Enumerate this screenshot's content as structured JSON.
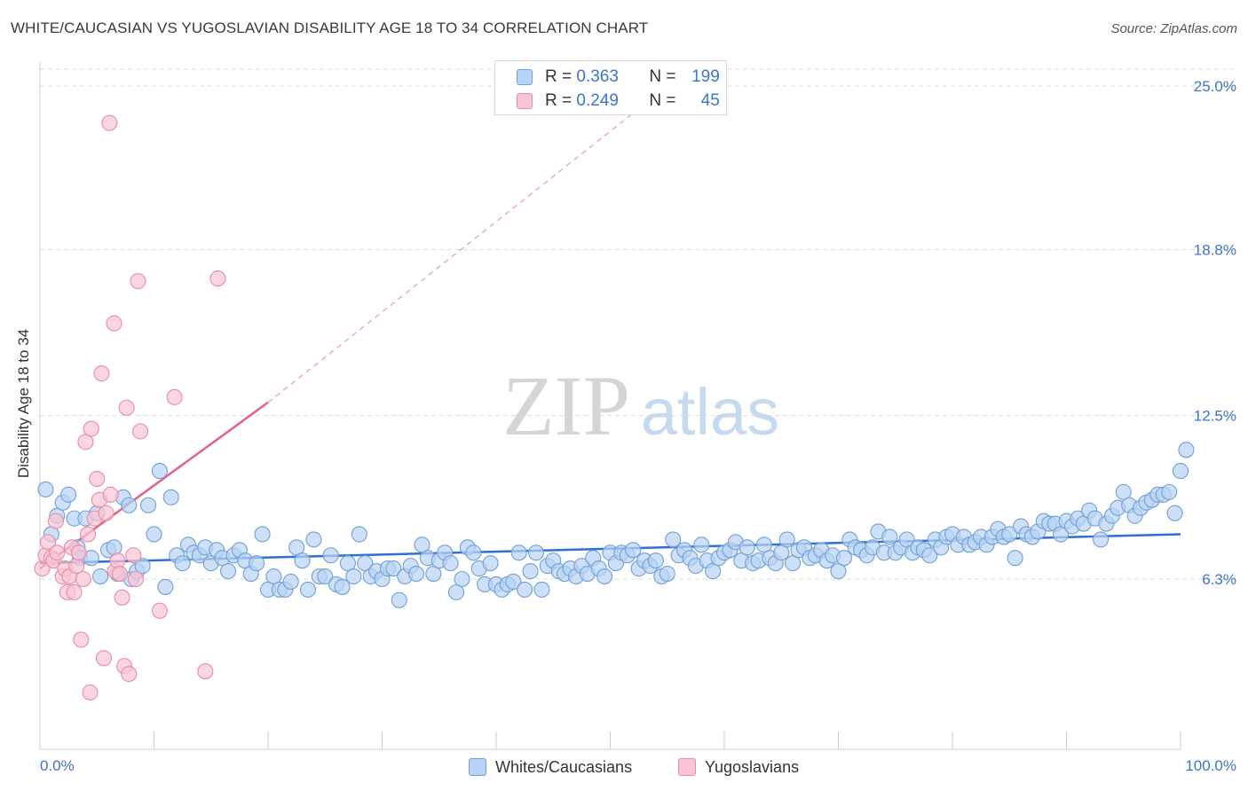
{
  "header": {
    "title": "WHITE/CAUCASIAN VS YUGOSLAVIAN DISABILITY AGE 18 TO 34 CORRELATION CHART",
    "source": "Source: ZipAtlas.com"
  },
  "watermark": {
    "zip": "ZIP",
    "atlas": "atlas"
  },
  "legend_top": {
    "rows": [
      {
        "r_label": "R =",
        "r_value": "0.363",
        "n_label": "N =",
        "n_value": "199",
        "color": "#6f9fd8"
      },
      {
        "r_label": "R =",
        "r_value": "0.249",
        "n_label": "N =",
        "n_value": "45",
        "color": "#e98aa7"
      }
    ]
  },
  "legend_bottom": {
    "items": [
      {
        "label": "Whites/Caucasians",
        "color": "#6f9fd8"
      },
      {
        "label": "Yugoslavians",
        "color": "#e98aa7"
      }
    ]
  },
  "chart_data": {
    "type": "scatter",
    "title": "WHITE/CAUCASIAN VS YUGOSLAVIAN DISABILITY AGE 18 TO 34 CORRELATION CHART",
    "xlabel": "",
    "ylabel": "Disability Age 18 to 34",
    "xlim": [
      0,
      100
    ],
    "ylim": [
      0,
      26
    ],
    "x_tick_labels": [
      "0.0%",
      "100.0%"
    ],
    "y_ticks": [
      6.3,
      12.5,
      18.8,
      25.0
    ],
    "y_tick_labels": [
      "6.3%",
      "12.5%",
      "18.8%",
      "25.0%"
    ],
    "grid": true,
    "legend_position": "top-center",
    "series": [
      {
        "name": "Whites/Caucasians",
        "color": "#6f9fd8",
        "fill": "#b8d3f4",
        "trend": {
          "x": [
            0,
            100
          ],
          "y": [
            6.9,
            8.0
          ],
          "style": "solid"
        },
        "points": [
          [
            0.5,
            9.7
          ],
          [
            1,
            8.0
          ],
          [
            1.5,
            8.7
          ],
          [
            2,
            9.2
          ],
          [
            2.5,
            9.5
          ],
          [
            3,
            8.6
          ],
          [
            3.3,
            7.5
          ],
          [
            3.5,
            7.1
          ],
          [
            4,
            8.6
          ],
          [
            4.5,
            7.1
          ],
          [
            5,
            8.8
          ],
          [
            5.3,
            6.4
          ],
          [
            6,
            7.4
          ],
          [
            6.5,
            7.5
          ],
          [
            6.8,
            6.5
          ],
          [
            7.3,
            9.4
          ],
          [
            7.8,
            9.1
          ],
          [
            8,
            6.3
          ],
          [
            8.5,
            6.6
          ],
          [
            9,
            6.8
          ],
          [
            9.5,
            9.1
          ],
          [
            10,
            8.0
          ],
          [
            10.5,
            10.4
          ],
          [
            11,
            6.0
          ],
          [
            11.5,
            9.4
          ],
          [
            12,
            7.2
          ],
          [
            12.5,
            6.9
          ],
          [
            13,
            7.6
          ],
          [
            13.5,
            7.3
          ],
          [
            14,
            7.2
          ],
          [
            14.5,
            7.5
          ],
          [
            15,
            6.9
          ],
          [
            15.5,
            7.4
          ],
          [
            16,
            7.1
          ],
          [
            16.5,
            6.6
          ],
          [
            17,
            7.2
          ],
          [
            17.5,
            7.4
          ],
          [
            18,
            7.0
          ],
          [
            18.5,
            6.5
          ],
          [
            19,
            6.9
          ],
          [
            19.5,
            8.0
          ],
          [
            20,
            5.9
          ],
          [
            20.5,
            6.4
          ],
          [
            21,
            5.9
          ],
          [
            21.5,
            5.9
          ],
          [
            22,
            6.2
          ],
          [
            22.5,
            7.5
          ],
          [
            23,
            7.0
          ],
          [
            23.5,
            5.9
          ],
          [
            24,
            7.8
          ],
          [
            24.5,
            6.4
          ],
          [
            25,
            6.4
          ],
          [
            25.5,
            7.2
          ],
          [
            26,
            6.1
          ],
          [
            26.5,
            6.0
          ],
          [
            27,
            6.9
          ],
          [
            27.5,
            6.4
          ],
          [
            28,
            8.0
          ],
          [
            28.5,
            6.9
          ],
          [
            29,
            6.4
          ],
          [
            29.5,
            6.6
          ],
          [
            30,
            6.3
          ],
          [
            30.5,
            6.7
          ],
          [
            31,
            6.7
          ],
          [
            31.5,
            5.5
          ],
          [
            32,
            6.4
          ],
          [
            32.5,
            6.8
          ],
          [
            33,
            6.5
          ],
          [
            33.5,
            7.6
          ],
          [
            34,
            7.1
          ],
          [
            34.5,
            6.5
          ],
          [
            35,
            7.0
          ],
          [
            35.5,
            7.3
          ],
          [
            36,
            6.9
          ],
          [
            36.5,
            5.8
          ],
          [
            37,
            6.3
          ],
          [
            37.5,
            7.5
          ],
          [
            38,
            7.3
          ],
          [
            38.5,
            6.7
          ],
          [
            39,
            6.1
          ],
          [
            39.5,
            6.9
          ],
          [
            40,
            6.1
          ],
          [
            40.5,
            5.9
          ],
          [
            41,
            6.1
          ],
          [
            41.5,
            6.2
          ],
          [
            42,
            7.3
          ],
          [
            42.5,
            5.9
          ],
          [
            43,
            6.6
          ],
          [
            43.5,
            7.3
          ],
          [
            44,
            5.9
          ],
          [
            44.5,
            6.8
          ],
          [
            45,
            7.0
          ],
          [
            45.5,
            6.6
          ],
          [
            46,
            6.5
          ],
          [
            46.5,
            6.7
          ],
          [
            47,
            6.4
          ],
          [
            47.5,
            6.8
          ],
          [
            48,
            6.5
          ],
          [
            48.5,
            7.1
          ],
          [
            49,
            6.7
          ],
          [
            49.5,
            6.4
          ],
          [
            50,
            7.3
          ],
          [
            50.5,
            6.9
          ],
          [
            51,
            7.3
          ],
          [
            51.5,
            7.2
          ],
          [
            52,
            7.4
          ],
          [
            52.5,
            6.7
          ],
          [
            53,
            7.0
          ],
          [
            53.5,
            6.8
          ],
          [
            54,
            7.0
          ],
          [
            54.5,
            6.4
          ],
          [
            55,
            6.5
          ],
          [
            55.5,
            7.8
          ],
          [
            56,
            7.2
          ],
          [
            56.5,
            7.4
          ],
          [
            57,
            7.1
          ],
          [
            57.5,
            6.8
          ],
          [
            58,
            7.6
          ],
          [
            58.5,
            7.0
          ],
          [
            59,
            6.6
          ],
          [
            59.5,
            7.1
          ],
          [
            60,
            7.3
          ],
          [
            60.5,
            7.4
          ],
          [
            61,
            7.7
          ],
          [
            61.5,
            7.0
          ],
          [
            62,
            7.5
          ],
          [
            62.5,
            6.9
          ],
          [
            63,
            7.0
          ],
          [
            63.5,
            7.6
          ],
          [
            64,
            7.1
          ],
          [
            64.5,
            6.9
          ],
          [
            65,
            7.3
          ],
          [
            65.5,
            7.8
          ],
          [
            66,
            6.9
          ],
          [
            66.5,
            7.4
          ],
          [
            67,
            7.5
          ],
          [
            67.5,
            7.1
          ],
          [
            68,
            7.2
          ],
          [
            68.5,
            7.4
          ],
          [
            69,
            7.0
          ],
          [
            69.5,
            7.2
          ],
          [
            70,
            6.6
          ],
          [
            70.5,
            7.1
          ],
          [
            71,
            7.8
          ],
          [
            71.5,
            7.5
          ],
          [
            72,
            7.4
          ],
          [
            72.5,
            7.2
          ],
          [
            73,
            7.5
          ],
          [
            73.5,
            8.1
          ],
          [
            74,
            7.3
          ],
          [
            74.5,
            7.9
          ],
          [
            75,
            7.3
          ],
          [
            75.5,
            7.5
          ],
          [
            76,
            7.8
          ],
          [
            76.5,
            7.3
          ],
          [
            77,
            7.5
          ],
          [
            77.5,
            7.4
          ],
          [
            78,
            7.2
          ],
          [
            78.5,
            7.8
          ],
          [
            79,
            7.5
          ],
          [
            79.5,
            7.9
          ],
          [
            80,
            8.0
          ],
          [
            80.5,
            7.6
          ],
          [
            81,
            7.9
          ],
          [
            81.5,
            7.6
          ],
          [
            82,
            7.7
          ],
          [
            82.5,
            7.9
          ],
          [
            83,
            7.6
          ],
          [
            83.5,
            7.9
          ],
          [
            84,
            8.2
          ],
          [
            84.5,
            7.9
          ],
          [
            85,
            8.0
          ],
          [
            85.5,
            7.1
          ],
          [
            86,
            8.3
          ],
          [
            86.5,
            8.0
          ],
          [
            87,
            7.9
          ],
          [
            87.5,
            8.1
          ],
          [
            88,
            8.5
          ],
          [
            88.5,
            8.4
          ],
          [
            89,
            8.4
          ],
          [
            89.5,
            8.0
          ],
          [
            90,
            8.5
          ],
          [
            90.5,
            8.3
          ],
          [
            91,
            8.6
          ],
          [
            91.5,
            8.4
          ],
          [
            92,
            8.9
          ],
          [
            92.5,
            8.6
          ],
          [
            93,
            7.8
          ],
          [
            93.5,
            8.4
          ],
          [
            94,
            8.7
          ],
          [
            94.5,
            9.0
          ],
          [
            95,
            9.6
          ],
          [
            95.5,
            9.1
          ],
          [
            96,
            8.7
          ],
          [
            96.5,
            9.0
          ],
          [
            97,
            9.2
          ],
          [
            97.5,
            9.3
          ],
          [
            98,
            9.5
          ],
          [
            98.5,
            9.5
          ],
          [
            99,
            9.6
          ],
          [
            99.5,
            8.8
          ],
          [
            100,
            10.4
          ],
          [
            100.5,
            11.2
          ]
        ]
      },
      {
        "name": "Yugoslavians",
        "color": "#e98aa7",
        "fill": "#f9c4d3",
        "trend": {
          "x": [
            0,
            20
          ],
          "y": [
            6.7,
            13.0
          ],
          "style": "solid",
          "extended_to": [
            55,
            25.0
          ],
          "extended_style": "dashed"
        },
        "points": [
          [
            0.2,
            6.7
          ],
          [
            0.5,
            7.2
          ],
          [
            0.7,
            7.7
          ],
          [
            1,
            7.1
          ],
          [
            1.2,
            7.0
          ],
          [
            1.4,
            8.5
          ],
          [
            1.5,
            7.3
          ],
          [
            2,
            6.4
          ],
          [
            2.2,
            6.7
          ],
          [
            2.4,
            5.8
          ],
          [
            2.6,
            6.4
          ],
          [
            2.8,
            7.5
          ],
          [
            3,
            5.8
          ],
          [
            3.2,
            6.8
          ],
          [
            3.4,
            7.3
          ],
          [
            3.6,
            4.0
          ],
          [
            3.8,
            6.3
          ],
          [
            4,
            11.5
          ],
          [
            4.2,
            8.0
          ],
          [
            4.4,
            2.0
          ],
          [
            4.5,
            12.0
          ],
          [
            4.8,
            8.6
          ],
          [
            5,
            10.1
          ],
          [
            5.2,
            9.3
          ],
          [
            5.4,
            14.1
          ],
          [
            5.6,
            3.3
          ],
          [
            5.8,
            8.8
          ],
          [
            6.1,
            23.6
          ],
          [
            6.2,
            9.5
          ],
          [
            6.5,
            16.0
          ],
          [
            6.6,
            6.6
          ],
          [
            6.8,
            7.0
          ],
          [
            7,
            6.5
          ],
          [
            7.2,
            5.6
          ],
          [
            7.4,
            3.0
          ],
          [
            7.6,
            12.8
          ],
          [
            7.8,
            2.7
          ],
          [
            8.2,
            7.2
          ],
          [
            8.4,
            6.3
          ],
          [
            8.6,
            17.6
          ],
          [
            8.8,
            11.9
          ],
          [
            10.5,
            5.1
          ],
          [
            11.8,
            13.2
          ],
          [
            14.5,
            2.8
          ],
          [
            15.6,
            17.7
          ]
        ]
      }
    ]
  }
}
